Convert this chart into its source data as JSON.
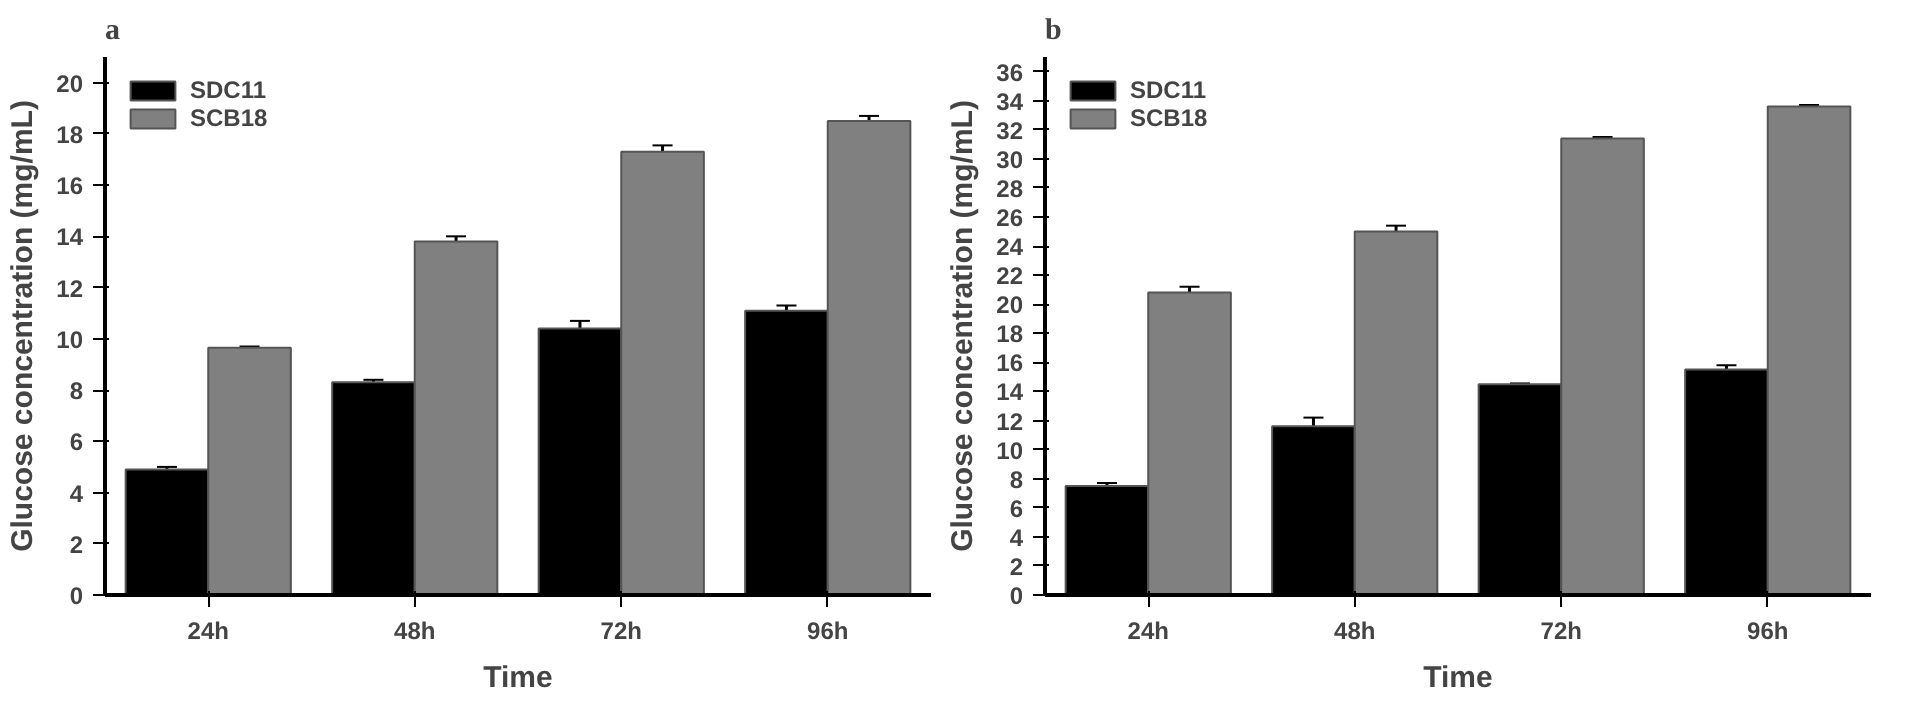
{
  "chart_data": [
    {
      "type": "bar",
      "title": "a",
      "xlabel": "Time",
      "ylabel": "Glucose concentration (mg/mL)",
      "categories": [
        "24h",
        "48h",
        "72h",
        "96h"
      ],
      "series": [
        {
          "name": "SDC11",
          "color": "#000000",
          "values": [
            4.9,
            8.3,
            10.4,
            11.1
          ],
          "errors": [
            0.1,
            0.1,
            0.3,
            0.2
          ]
        },
        {
          "name": "SCB18",
          "color": "#808080",
          "values": [
            9.65,
            13.8,
            17.3,
            18.5
          ],
          "errors": [
            0.05,
            0.2,
            0.25,
            0.2
          ]
        }
      ],
      "ylim": [
        0,
        21
      ],
      "yticks": [
        0,
        2,
        4,
        6,
        8,
        10,
        12,
        14,
        16,
        18,
        20
      ],
      "grid": false,
      "legend": "top left"
    },
    {
      "type": "bar",
      "title": "b",
      "xlabel": "Time",
      "ylabel": "Glucose concentration (mg/mL)",
      "categories": [
        "24h",
        "48h",
        "72h",
        "96h"
      ],
      "series": [
        {
          "name": "SDC11",
          "color": "#000000",
          "values": [
            7.5,
            11.6,
            14.5,
            15.5
          ],
          "errors": [
            0.2,
            0.6,
            0.05,
            0.3
          ]
        },
        {
          "name": "SCB18",
          "color": "#808080",
          "values": [
            20.8,
            25.0,
            31.4,
            33.6
          ],
          "errors": [
            0.4,
            0.4,
            0.1,
            0.1
          ]
        }
      ],
      "ylim": [
        0,
        37
      ],
      "yticks": [
        0,
        2,
        4,
        6,
        8,
        10,
        12,
        14,
        16,
        18,
        20,
        22,
        24,
        26,
        28,
        30,
        32,
        34,
        36
      ],
      "grid": false,
      "legend": "top left"
    }
  ]
}
